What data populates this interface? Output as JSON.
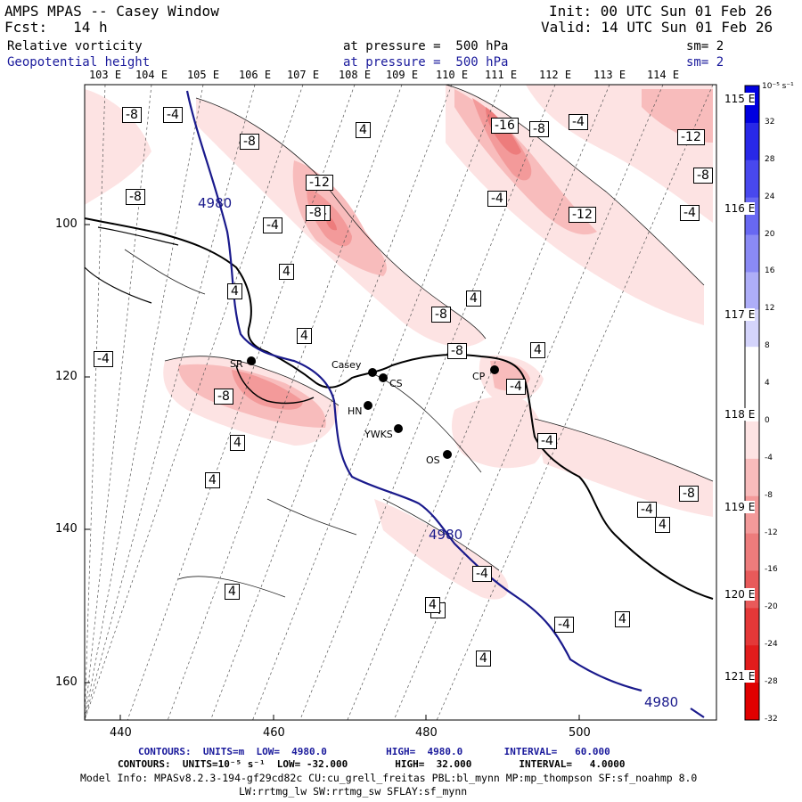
{
  "header": {
    "left1": "AMPS MPAS -- Casey Window",
    "left2": "Fcst:   14 h",
    "right1": "Init: 00 UTC Sun 01 Feb 26",
    "right2": "Valid: 14 UTC Sun 01 Feb 26"
  },
  "fields": [
    {
      "name": "Relative vorticity",
      "level": "at pressure =  500 hPa",
      "sm": "sm= 2"
    },
    {
      "name": "Geopotential height",
      "level": "at pressure =  500 hPa",
      "sm": "sm= 2"
    }
  ],
  "map": {
    "top_lon_labels": [
      "103 E",
      "104 E",
      "105 E",
      "106 E",
      "107 E",
      "108 E",
      "109 E",
      "110 E",
      "111 E",
      "112 E",
      "113 E",
      "114 E"
    ],
    "right_lon_labels": [
      "115 E",
      "116 E",
      "117 E",
      "118 E",
      "119 E",
      "120 E",
      "121 E"
    ],
    "x_ticks": [
      "440",
      "460",
      "480",
      "500"
    ],
    "y_ticks": [
      "100",
      "120",
      "140",
      "160"
    ],
    "stations": [
      "Casey",
      "CS",
      "SR",
      "HN",
      "YWKS",
      "OS",
      "CP"
    ],
    "height_label": "4980",
    "vorticity_labels": [
      "-8",
      "-4",
      "-8",
      "-8",
      "-12",
      "-4",
      "-4",
      "4",
      "4",
      "4",
      "-4",
      "4",
      "-8",
      "4",
      "-8",
      "-8",
      "-4",
      "4",
      "4",
      "-4",
      "4",
      "4",
      "4",
      "-16",
      "-8",
      "-4",
      "-12",
      "-4",
      "-12",
      "-8",
      "-4",
      "-8",
      "-4",
      "-4",
      "-4"
    ]
  },
  "colorbar": {
    "unit": "10⁻⁵ s⁻¹",
    "labels": [
      "32",
      "28",
      "24",
      "20",
      "16",
      "12",
      "8",
      "4",
      "0",
      "-4",
      "-8",
      "-12",
      "-16",
      "-20",
      "-24",
      "-28",
      "-32"
    ]
  },
  "footer": {
    "line1": "CONTOURS:  UNITS=m  LOW=  4980.0          HIGH=  4980.0       INTERVAL=   60.000",
    "line2": "CONTOURS:  UNITS=10⁻⁵ s⁻¹  LOW= -32.000        HIGH=  32.000        INTERVAL=   4.0000",
    "line3": "Model Info: MPASv8.2.3-194-gf29cd82c CU:cu_grell_freitas PBL:bl_mynn MP:mp_thompson SF:sf_noahmp 8.0",
    "line4": "LW:rrtmg_lw SW:rrtmg_sw SFLAY:sf_mynn"
  }
}
